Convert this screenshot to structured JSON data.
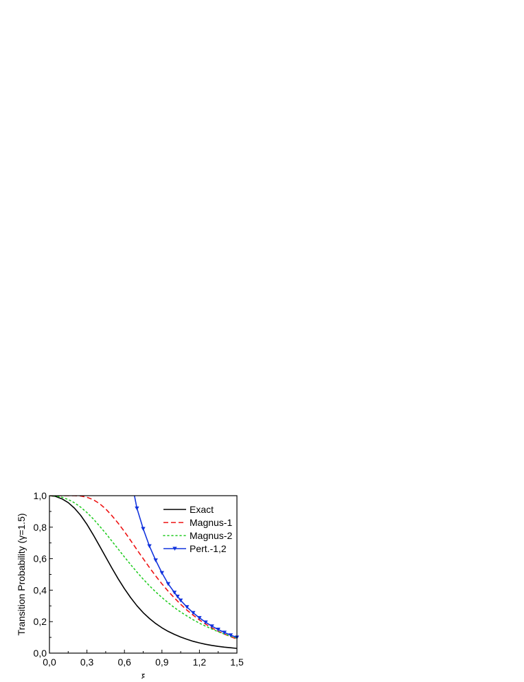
{
  "chart_data": {
    "type": "line",
    "xlabel": "ξ",
    "ylabel": "Transition Probability (γ=1.5)",
    "xlim": [
      0,
      1.5
    ],
    "ylim": [
      0,
      1.0
    ],
    "x_ticks": [
      {
        "value": 0.0,
        "label": "0,0"
      },
      {
        "value": 0.3,
        "label": "0,3"
      },
      {
        "value": 0.6,
        "label": "0,6"
      },
      {
        "value": 0.9,
        "label": "0,9"
      },
      {
        "value": 1.2,
        "label": "1,2"
      },
      {
        "value": 1.5,
        "label": "1,5"
      }
    ],
    "y_ticks": [
      {
        "value": 0.0,
        "label": "0,0"
      },
      {
        "value": 0.2,
        "label": "0,2"
      },
      {
        "value": 0.4,
        "label": "0,4"
      },
      {
        "value": 0.6,
        "label": "0,6"
      },
      {
        "value": 0.8,
        "label": "0,8"
      },
      {
        "value": 1.0,
        "label": "1,0"
      }
    ],
    "grid": false,
    "legend_position": "top-right",
    "series": [
      {
        "name": "Exact",
        "color": "#000000",
        "style": "solid",
        "x": [
          0,
          0.05,
          0.1,
          0.15,
          0.2,
          0.25,
          0.3,
          0.35,
          0.4,
          0.45,
          0.5,
          0.55,
          0.6,
          0.65,
          0.7,
          0.75,
          0.8,
          0.85,
          0.9,
          0.95,
          1.0,
          1.05,
          1.1,
          1.15,
          1.2,
          1.25,
          1.3,
          1.35,
          1.4,
          1.45,
          1.5
        ],
        "y": [
          1.0,
          0.995,
          0.98,
          0.956,
          0.921,
          0.875,
          0.818,
          0.752,
          0.682,
          0.611,
          0.54,
          0.472,
          0.409,
          0.352,
          0.301,
          0.257,
          0.22,
          0.188,
          0.161,
          0.138,
          0.119,
          0.102,
          0.088,
          0.075,
          0.065,
          0.056,
          0.049,
          0.043,
          0.038,
          0.034,
          0.03
        ]
      },
      {
        "name": "Magnus-1",
        "color": "#ee1111",
        "style": "dashed",
        "x": [
          0,
          0.05,
          0.1,
          0.15,
          0.2,
          0.25,
          0.3,
          0.35,
          0.4,
          0.45,
          0.5,
          0.55,
          0.6,
          0.65,
          0.7,
          0.75,
          0.8,
          0.85,
          0.9,
          0.95,
          1.0,
          1.05,
          1.1,
          1.15,
          1.2,
          1.25,
          1.3,
          1.35,
          1.4,
          1.45,
          1.5
        ],
        "y": [
          1.0,
          1.0,
          1.0,
          1.0,
          1.0,
          0.998,
          0.99,
          0.975,
          0.95,
          0.916,
          0.873,
          0.825,
          0.772,
          0.715,
          0.657,
          0.6,
          0.544,
          0.49,
          0.44,
          0.393,
          0.35,
          0.31,
          0.273,
          0.241,
          0.211,
          0.184,
          0.16,
          0.139,
          0.121,
          0.104,
          0.09
        ]
      },
      {
        "name": "Magnus-2",
        "color": "#22cc22",
        "style": "dotted",
        "x": [
          0,
          0.05,
          0.1,
          0.15,
          0.2,
          0.25,
          0.3,
          0.35,
          0.4,
          0.45,
          0.5,
          0.55,
          0.6,
          0.65,
          0.7,
          0.75,
          0.8,
          0.85,
          0.9,
          0.95,
          1.0,
          1.05,
          1.1,
          1.15,
          1.2,
          1.25,
          1.3,
          1.35,
          1.4,
          1.45,
          1.5
        ],
        "y": [
          1.0,
          0.998,
          0.99,
          0.976,
          0.955,
          0.927,
          0.893,
          0.853,
          0.808,
          0.761,
          0.711,
          0.661,
          0.611,
          0.562,
          0.515,
          0.47,
          0.428,
          0.389,
          0.353,
          0.32,
          0.289,
          0.261,
          0.236,
          0.212,
          0.19,
          0.171,
          0.153,
          0.136,
          0.121,
          0.107,
          0.095
        ]
      },
      {
        "name": "Pert.-1,2",
        "color": "#1133dd",
        "style": "solid",
        "marker": "triangle-down",
        "x": [
          0.68,
          0.7,
          0.75,
          0.8,
          0.85,
          0.9,
          0.95,
          1.0,
          1.05,
          1.1,
          1.15,
          1.2,
          1.25,
          1.3,
          1.35,
          1.4,
          1.45,
          1.5
        ],
        "y": [
          1.0,
          0.92,
          0.79,
          0.68,
          0.59,
          0.51,
          0.44,
          0.385,
          0.335,
          0.293,
          0.256,
          0.224,
          0.196,
          0.171,
          0.15,
          0.131,
          0.114,
          0.1
        ],
        "marker_x": [
          0.7,
          0.75,
          0.8,
          0.85,
          0.9,
          0.95,
          1.0,
          1.025,
          1.05,
          1.1,
          1.15,
          1.2,
          1.25,
          1.3,
          1.35,
          1.4,
          1.45,
          1.5
        ]
      }
    ]
  }
}
